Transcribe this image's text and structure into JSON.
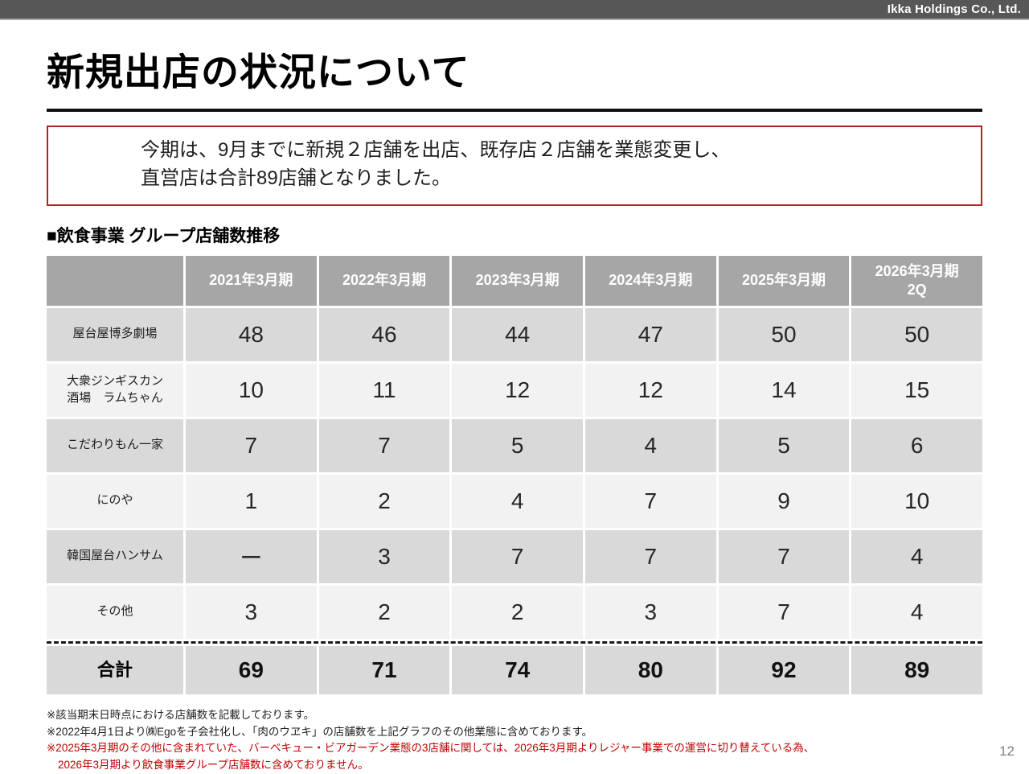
{
  "header_bar": {
    "company": "Ikka Holdings Co., Ltd."
  },
  "title": "新規出店の状況について",
  "highlight_box": {
    "line1": "今期は、9月までに新規２店舗を出店、既存店２店舗を業態変更し、",
    "line2": "直営店は合計89店舗となりました。"
  },
  "section": {
    "heading": "■飲食事業 グループ店舗数推移"
  },
  "table": {
    "columns": [
      "2021年3月期",
      "2022年3月期",
      "2023年3月期",
      "2024年3月期",
      "2025年3月期",
      "2026年3月期\n2Q"
    ],
    "rows": [
      {
        "label": "屋台屋博多劇場",
        "values": [
          "48",
          "46",
          "44",
          "47",
          "50",
          "50"
        ]
      },
      {
        "label": "大衆ジンギスカン\n酒場　ラムちゃん",
        "values": [
          "10",
          "11",
          "12",
          "12",
          "14",
          "15"
        ]
      },
      {
        "label": "こだわりもん一家",
        "values": [
          "7",
          "7",
          "5",
          "4",
          "5",
          "6"
        ]
      },
      {
        "label": "にのや",
        "values": [
          "1",
          "2",
          "4",
          "7",
          "9",
          "10"
        ]
      },
      {
        "label": "韓国屋台ハンサム",
        "values": [
          "ー",
          "3",
          "7",
          "7",
          "7",
          "4"
        ]
      },
      {
        "label": "その他",
        "values": [
          "3",
          "2",
          "2",
          "3",
          "7",
          "4"
        ]
      }
    ],
    "total": {
      "label": "合計",
      "values": [
        "69",
        "71",
        "74",
        "80",
        "92",
        "89"
      ]
    }
  },
  "footnotes": [
    {
      "text": "※該当期末日時点における店舗数を記載しております。"
    },
    {
      "text": "※2022年4月1日より㈱Egoを子会社化し、「肉のウヱキ」の店舗数を上記グラフのその他業態に含めております。"
    },
    {
      "text": "※2025年3月期のその他に含まれていた、バーベキュー・ビアガーデン業態の3店舗に関しては、2026年3月期よりレジャー事業での運営に切り替えている為、"
    },
    {
      "text": "2026年3月期より飲食事業グループ店舗数に含めておりません。"
    }
  ],
  "page_number": "12",
  "colors": {
    "topbar_gray": "#575757",
    "box_border_red": "#b02423",
    "footnote_red": "#c00000",
    "table_header_gray": "#a6a6a6",
    "row_dark": "#d9d9d9",
    "row_light": "#f2f2f2"
  }
}
